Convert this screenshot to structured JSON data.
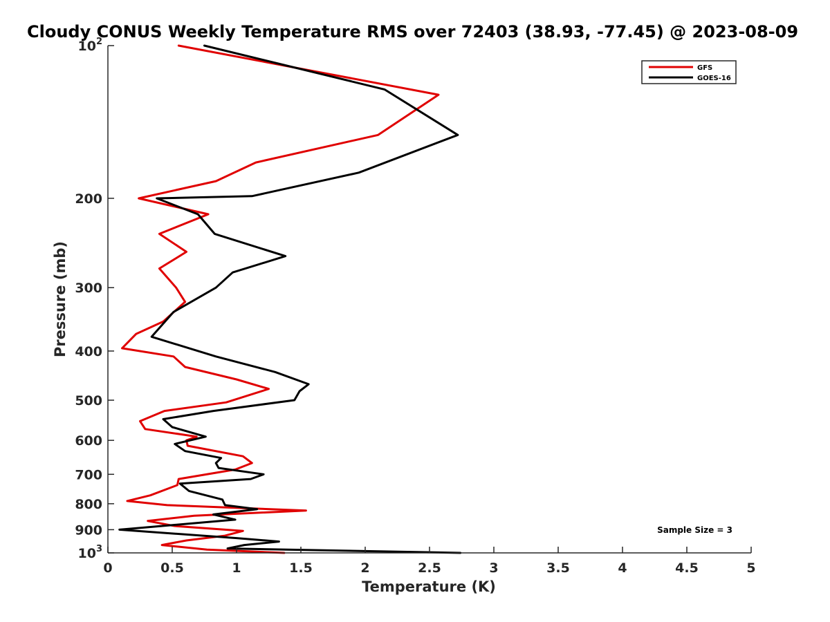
{
  "chart_data": {
    "type": "line",
    "title": "Cloudy CONUS Weekly Temperature RMS over 72403 (38.93, -77.45) @ 2023-08-09",
    "xlabel": "Temperature (K)",
    "ylabel": "Pressure (mb)",
    "xlim": [
      0,
      5
    ],
    "ylim": [
      100,
      1000
    ],
    "yscale": "log",
    "y_reversed": true,
    "grid": false,
    "legend_position": "top-right",
    "x_ticks": [
      "0",
      "0.5",
      "1",
      "1.5",
      "2",
      "2.5",
      "3",
      "3.5",
      "4",
      "4.5",
      "5"
    ],
    "y_ticks": [
      {
        "value": 100,
        "label": "10",
        "exp": "2"
      },
      {
        "value": 200,
        "label": "200"
      },
      {
        "value": 300,
        "label": "300"
      },
      {
        "value": 400,
        "label": "400"
      },
      {
        "value": 500,
        "label": "500"
      },
      {
        "value": 600,
        "label": "600"
      },
      {
        "value": 700,
        "label": "700"
      },
      {
        "value": 800,
        "label": "800"
      },
      {
        "value": 900,
        "label": "900"
      },
      {
        "value": 1000,
        "label": "10",
        "exp": "3"
      }
    ],
    "annotation": "Sample Size = 3",
    "series": [
      {
        "name": "GFS",
        "color": "#e00000",
        "points": [
          [
            0.55,
            100
          ],
          [
            2.57,
            125
          ],
          [
            2.1,
            150
          ],
          [
            1.15,
            170
          ],
          [
            0.84,
            185
          ],
          [
            0.24,
            200
          ],
          [
            0.78,
            215
          ],
          [
            0.4,
            235
          ],
          [
            0.61,
            255
          ],
          [
            0.4,
            275
          ],
          [
            0.53,
            300
          ],
          [
            0.6,
            320
          ],
          [
            0.43,
            350
          ],
          [
            0.22,
            370
          ],
          [
            0.11,
            395
          ],
          [
            0.51,
            410
          ],
          [
            0.6,
            430
          ],
          [
            1.0,
            455
          ],
          [
            1.25,
            475
          ],
          [
            0.92,
            505
          ],
          [
            0.44,
            525
          ],
          [
            0.25,
            550
          ],
          [
            0.29,
            570
          ],
          [
            0.69,
            590
          ],
          [
            0.61,
            600
          ],
          [
            0.62,
            615
          ],
          [
            1.05,
            645
          ],
          [
            1.12,
            665
          ],
          [
            0.99,
            685
          ],
          [
            0.55,
            715
          ],
          [
            0.54,
            735
          ],
          [
            0.33,
            770
          ],
          [
            0.15,
            790
          ],
          [
            0.46,
            805
          ],
          [
            1.54,
            825
          ],
          [
            0.67,
            845
          ],
          [
            0.31,
            865
          ],
          [
            0.52,
            885
          ],
          [
            1.05,
            905
          ],
          [
            0.91,
            925
          ],
          [
            0.61,
            945
          ],
          [
            0.42,
            965
          ],
          [
            0.77,
            985
          ],
          [
            1.37,
            1000
          ]
        ]
      },
      {
        "name": "GOES-16",
        "color": "#000000",
        "points": [
          [
            0.75,
            100
          ],
          [
            2.15,
            122
          ],
          [
            2.72,
            150
          ],
          [
            1.95,
            178
          ],
          [
            1.12,
            198
          ],
          [
            0.38,
            200
          ],
          [
            0.7,
            215
          ],
          [
            0.83,
            235
          ],
          [
            1.38,
            260
          ],
          [
            0.97,
            280
          ],
          [
            0.84,
            300
          ],
          [
            0.51,
            335
          ],
          [
            0.34,
            375
          ],
          [
            0.84,
            410
          ],
          [
            1.3,
            440
          ],
          [
            1.56,
            465
          ],
          [
            1.49,
            480
          ],
          [
            1.45,
            500
          ],
          [
            0.82,
            525
          ],
          [
            0.43,
            545
          ],
          [
            0.5,
            565
          ],
          [
            0.76,
            590
          ],
          [
            0.52,
            610
          ],
          [
            0.6,
            630
          ],
          [
            0.88,
            650
          ],
          [
            0.84,
            665
          ],
          [
            0.86,
            680
          ],
          [
            1.21,
            700
          ],
          [
            1.11,
            715
          ],
          [
            0.56,
            730
          ],
          [
            0.63,
            755
          ],
          [
            0.89,
            785
          ],
          [
            0.91,
            805
          ],
          [
            1.16,
            820
          ],
          [
            0.82,
            840
          ],
          [
            0.99,
            860
          ],
          [
            0.09,
            900
          ],
          [
            1.0,
            935
          ],
          [
            1.33,
            950
          ],
          [
            1.06,
            965
          ],
          [
            0.93,
            980
          ],
          [
            2.74,
            1000
          ]
        ]
      }
    ]
  }
}
